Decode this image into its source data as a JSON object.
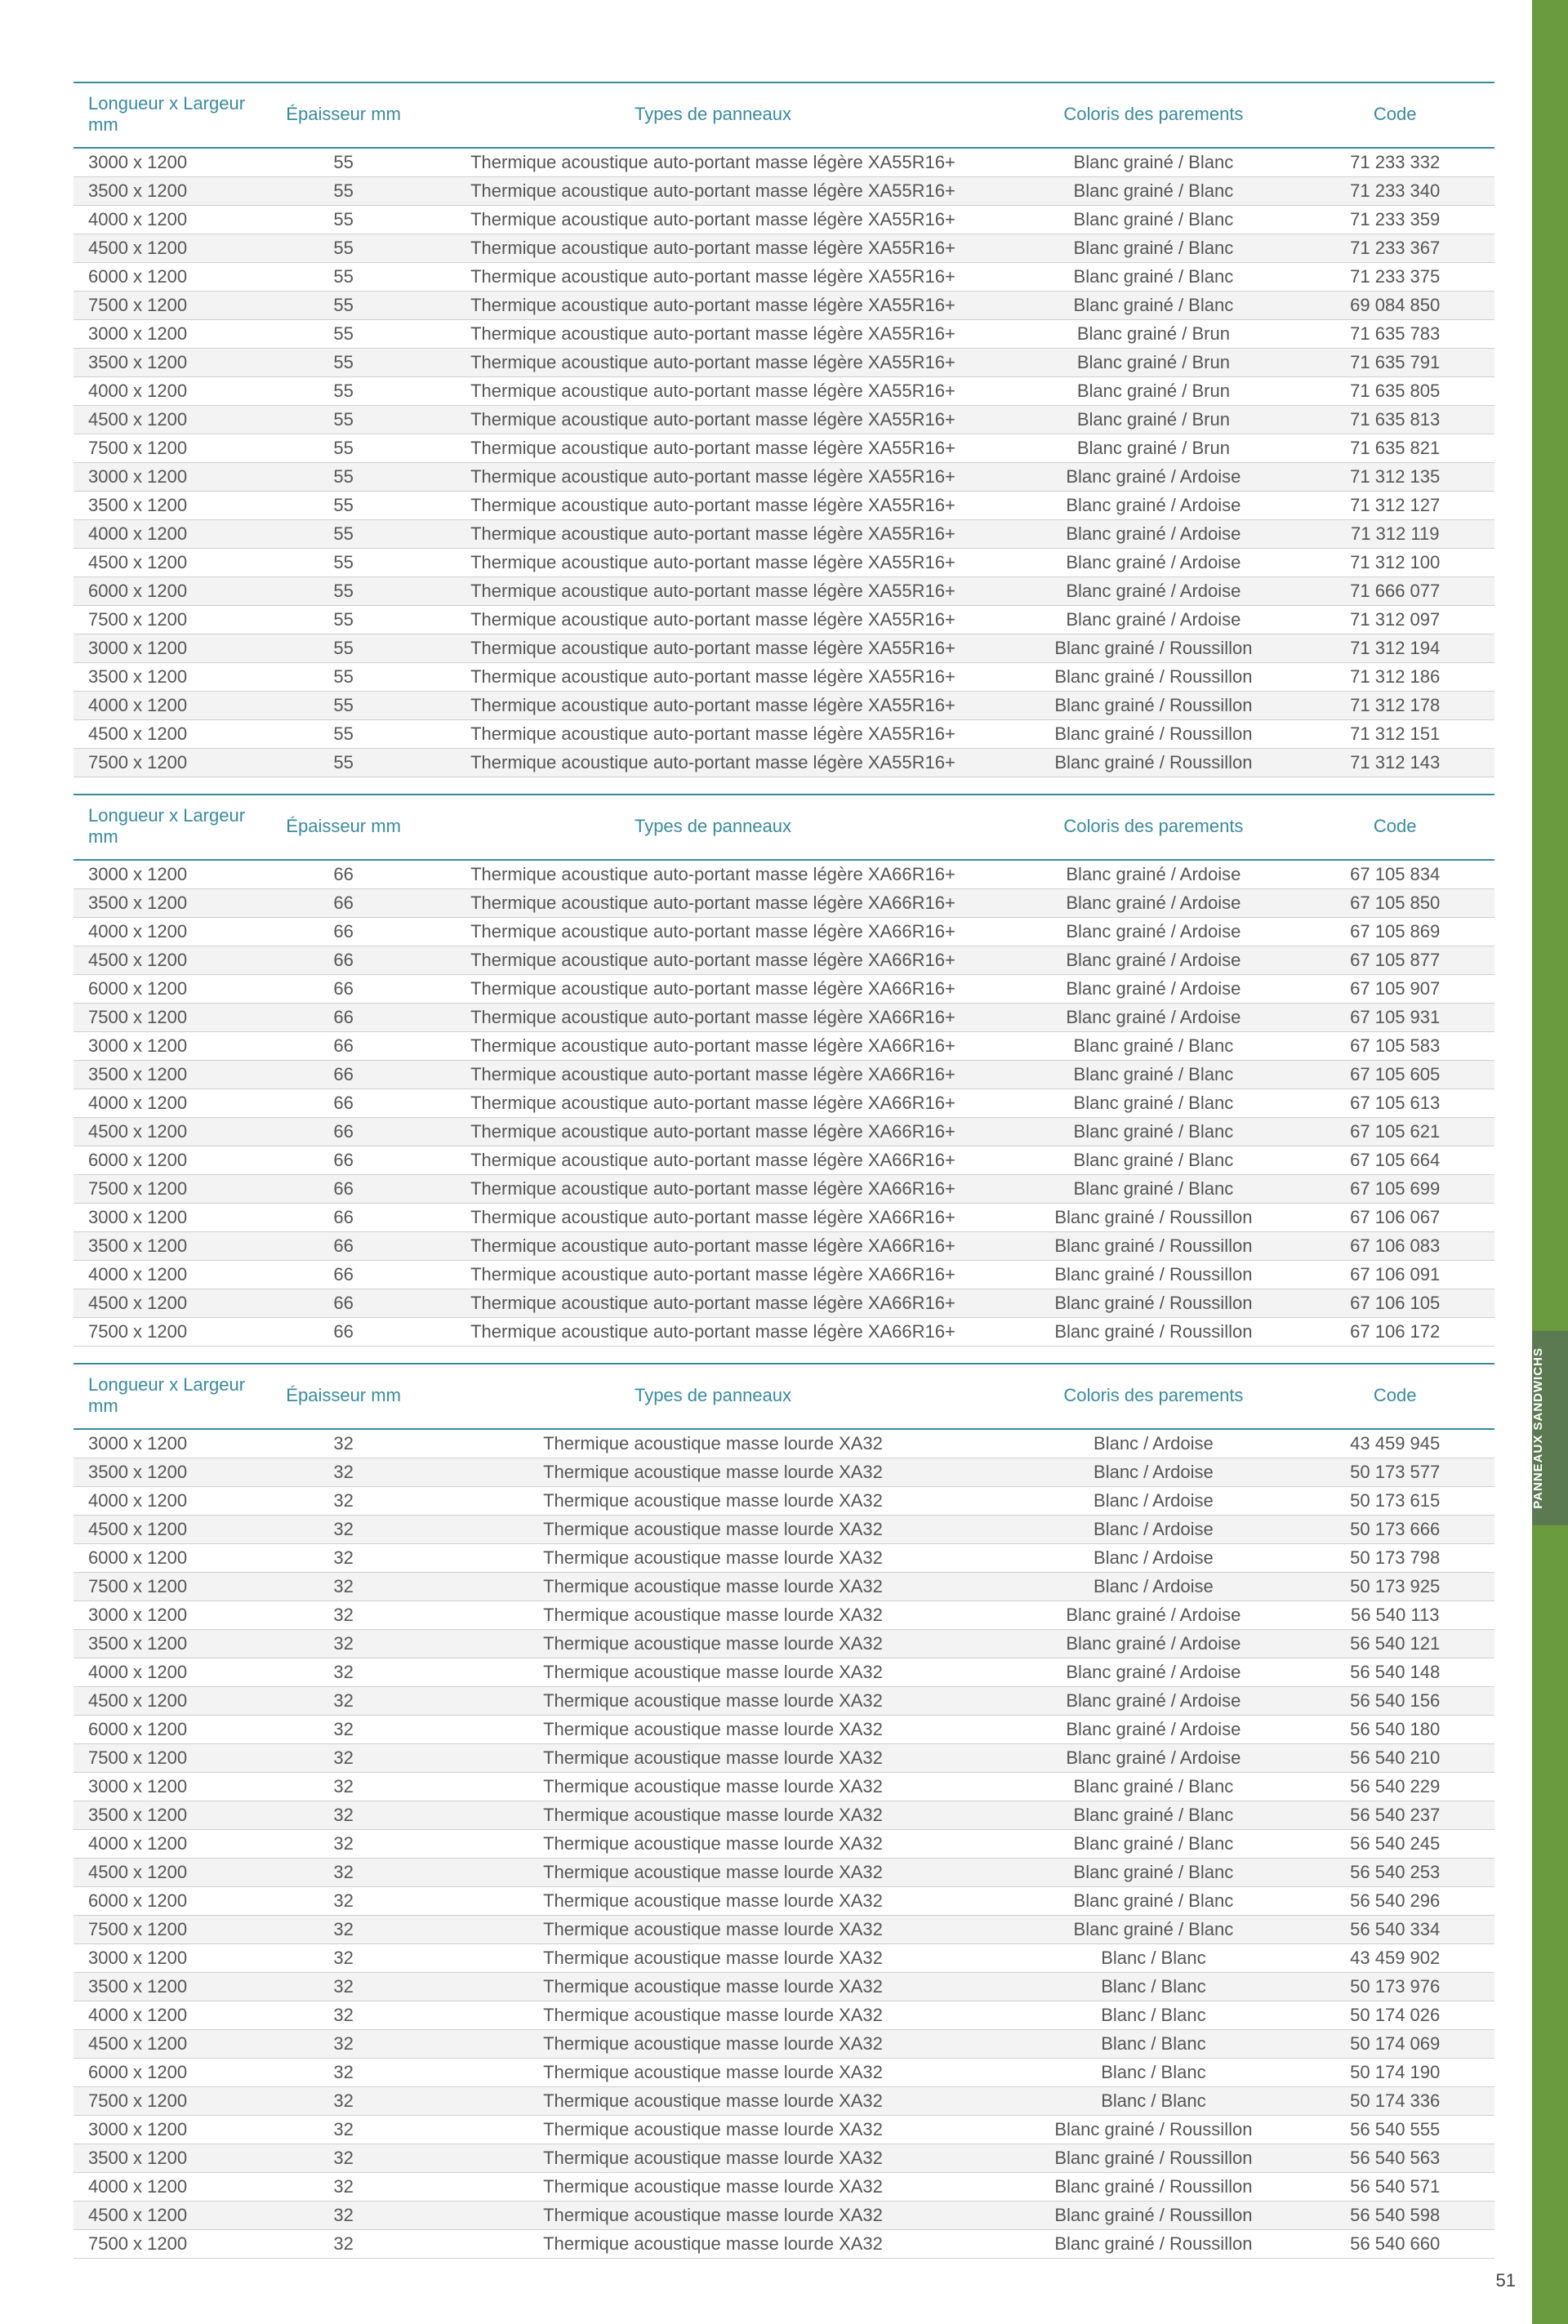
{
  "page_number": "51",
  "side_tab": "PANNEAUX SANDWICHS",
  "headers": {
    "dim": "Longueur x Largeur mm",
    "ep": "Épaisseur mm",
    "type": "Types de panneaux",
    "coloris": "Coloris des parements",
    "code": "Code"
  },
  "colors": {
    "header_text": "#3a8a9c",
    "header_rule": "#3a8a9c",
    "body_text": "#555555",
    "row_alt_bg": "#f3f3f3",
    "row_bg": "#ffffff",
    "green_band": "#6b9b3f",
    "side_tab_bg": "#5c7a52",
    "side_tab_text": "#ffffff",
    "fontsize_header": 22,
    "fontsize_body": 22
  },
  "tables": [
    {
      "rows": [
        {
          "dim": "3000 x 1200",
          "ep": "55",
          "type": "Thermique acoustique auto-portant masse légère XA55R16+",
          "coloris": "Blanc grainé / Blanc",
          "code": "71 233 332"
        },
        {
          "dim": "3500 x 1200",
          "ep": "55",
          "type": "Thermique acoustique auto-portant masse légère XA55R16+",
          "coloris": "Blanc grainé / Blanc",
          "code": "71 233 340"
        },
        {
          "dim": "4000 x 1200",
          "ep": "55",
          "type": "Thermique acoustique auto-portant masse légère XA55R16+",
          "coloris": "Blanc grainé / Blanc",
          "code": "71 233 359"
        },
        {
          "dim": "4500 x 1200",
          "ep": "55",
          "type": "Thermique acoustique auto-portant masse légère XA55R16+",
          "coloris": "Blanc grainé / Blanc",
          "code": "71 233 367"
        },
        {
          "dim": "6000 x 1200",
          "ep": "55",
          "type": "Thermique acoustique auto-portant masse légère XA55R16+",
          "coloris": "Blanc grainé / Blanc",
          "code": "71 233 375"
        },
        {
          "dim": "7500 x 1200",
          "ep": "55",
          "type": "Thermique acoustique auto-portant masse légère XA55R16+",
          "coloris": "Blanc grainé / Blanc",
          "code": "69 084 850"
        },
        {
          "dim": "3000 x 1200",
          "ep": "55",
          "type": "Thermique acoustique auto-portant masse légère XA55R16+",
          "coloris": "Blanc grainé / Brun",
          "code": "71 635 783"
        },
        {
          "dim": "3500 x 1200",
          "ep": "55",
          "type": "Thermique acoustique auto-portant masse légère XA55R16+",
          "coloris": "Blanc grainé / Brun",
          "code": "71 635 791"
        },
        {
          "dim": "4000 x 1200",
          "ep": "55",
          "type": "Thermique acoustique auto-portant masse légère XA55R16+",
          "coloris": "Blanc grainé / Brun",
          "code": "71 635 805"
        },
        {
          "dim": "4500 x 1200",
          "ep": "55",
          "type": "Thermique acoustique auto-portant masse légère XA55R16+",
          "coloris": "Blanc grainé / Brun",
          "code": "71 635 813"
        },
        {
          "dim": "7500 x 1200",
          "ep": "55",
          "type": "Thermique acoustique auto-portant masse légère XA55R16+",
          "coloris": "Blanc grainé / Brun",
          "code": "71 635 821"
        },
        {
          "dim": "3000 x 1200",
          "ep": "55",
          "type": "Thermique acoustique auto-portant masse légère XA55R16+",
          "coloris": "Blanc grainé / Ardoise",
          "code": "71 312 135"
        },
        {
          "dim": "3500 x 1200",
          "ep": "55",
          "type": "Thermique acoustique auto-portant masse légère XA55R16+",
          "coloris": "Blanc grainé / Ardoise",
          "code": "71 312 127"
        },
        {
          "dim": "4000 x 1200",
          "ep": "55",
          "type": "Thermique acoustique auto-portant masse légère XA55R16+",
          "coloris": "Blanc grainé / Ardoise",
          "code": "71 312 119"
        },
        {
          "dim": "4500 x 1200",
          "ep": "55",
          "type": "Thermique acoustique auto-portant masse légère XA55R16+",
          "coloris": "Blanc grainé / Ardoise",
          "code": "71 312 100"
        },
        {
          "dim": "6000 x 1200",
          "ep": "55",
          "type": "Thermique acoustique auto-portant masse légère XA55R16+",
          "coloris": "Blanc grainé / Ardoise",
          "code": "71 666 077"
        },
        {
          "dim": "7500 x 1200",
          "ep": "55",
          "type": "Thermique acoustique auto-portant masse légère XA55R16+",
          "coloris": "Blanc grainé / Ardoise",
          "code": "71 312 097"
        },
        {
          "dim": "3000 x 1200",
          "ep": "55",
          "type": "Thermique acoustique auto-portant masse légère XA55R16+",
          "coloris": "Blanc grainé / Roussillon",
          "code": "71 312 194"
        },
        {
          "dim": "3500 x 1200",
          "ep": "55",
          "type": "Thermique acoustique auto-portant masse légère XA55R16+",
          "coloris": "Blanc grainé / Roussillon",
          "code": "71 312 186"
        },
        {
          "dim": "4000 x 1200",
          "ep": "55",
          "type": "Thermique acoustique auto-portant masse légère XA55R16+",
          "coloris": "Blanc grainé / Roussillon",
          "code": "71 312 178"
        },
        {
          "dim": "4500 x 1200",
          "ep": "55",
          "type": "Thermique acoustique auto-portant masse légère XA55R16+",
          "coloris": "Blanc grainé / Roussillon",
          "code": "71 312 151"
        },
        {
          "dim": "7500 x 1200",
          "ep": "55",
          "type": "Thermique acoustique auto-portant masse légère XA55R16+",
          "coloris": "Blanc grainé / Roussillon",
          "code": "71 312 143"
        }
      ]
    },
    {
      "rows": [
        {
          "dim": "3000 x 1200",
          "ep": "66",
          "type": "Thermique acoustique auto-portant masse légère XA66R16+",
          "coloris": "Blanc grainé / Ardoise",
          "code": "67 105 834"
        },
        {
          "dim": "3500 x 1200",
          "ep": "66",
          "type": "Thermique acoustique auto-portant masse légère XA66R16+",
          "coloris": "Blanc grainé / Ardoise",
          "code": "67 105 850"
        },
        {
          "dim": "4000 x 1200",
          "ep": "66",
          "type": "Thermique acoustique auto-portant masse légère XA66R16+",
          "coloris": "Blanc grainé / Ardoise",
          "code": "67 105 869"
        },
        {
          "dim": "4500 x 1200",
          "ep": "66",
          "type": "Thermique acoustique auto-portant masse légère XA66R16+",
          "coloris": "Blanc grainé / Ardoise",
          "code": "67 105 877"
        },
        {
          "dim": "6000 x 1200",
          "ep": "66",
          "type": "Thermique acoustique auto-portant masse légère XA66R16+",
          "coloris": "Blanc grainé / Ardoise",
          "code": "67 105 907"
        },
        {
          "dim": "7500 x 1200",
          "ep": "66",
          "type": "Thermique acoustique auto-portant masse légère XA66R16+",
          "coloris": "Blanc grainé / Ardoise",
          "code": "67 105 931"
        },
        {
          "dim": "3000 x 1200",
          "ep": "66",
          "type": "Thermique acoustique auto-portant masse légère XA66R16+",
          "coloris": "Blanc grainé / Blanc",
          "code": "67 105 583"
        },
        {
          "dim": "3500 x 1200",
          "ep": "66",
          "type": "Thermique acoustique auto-portant masse légère XA66R16+",
          "coloris": "Blanc grainé / Blanc",
          "code": "67 105 605"
        },
        {
          "dim": "4000 x 1200",
          "ep": "66",
          "type": "Thermique acoustique auto-portant masse légère XA66R16+",
          "coloris": "Blanc grainé / Blanc",
          "code": "67 105 613"
        },
        {
          "dim": "4500 x 1200",
          "ep": "66",
          "type": "Thermique acoustique auto-portant masse légère XA66R16+",
          "coloris": "Blanc grainé / Blanc",
          "code": "67 105 621"
        },
        {
          "dim": "6000 x 1200",
          "ep": "66",
          "type": "Thermique acoustique auto-portant masse légère XA66R16+",
          "coloris": "Blanc grainé / Blanc",
          "code": "67 105 664"
        },
        {
          "dim": "7500 x 1200",
          "ep": "66",
          "type": "Thermique acoustique auto-portant masse légère XA66R16+",
          "coloris": "Blanc grainé / Blanc",
          "code": "67 105 699"
        },
        {
          "dim": "3000 x 1200",
          "ep": "66",
          "type": "Thermique acoustique auto-portant masse légère XA66R16+",
          "coloris": "Blanc grainé / Roussillon",
          "code": "67 106 067"
        },
        {
          "dim": "3500 x 1200",
          "ep": "66",
          "type": "Thermique acoustique auto-portant masse légère XA66R16+",
          "coloris": "Blanc grainé / Roussillon",
          "code": "67 106 083"
        },
        {
          "dim": "4000 x 1200",
          "ep": "66",
          "type": "Thermique acoustique auto-portant masse légère XA66R16+",
          "coloris": "Blanc grainé / Roussillon",
          "code": "67 106 091"
        },
        {
          "dim": "4500 x 1200",
          "ep": "66",
          "type": "Thermique acoustique auto-portant masse légère XA66R16+",
          "coloris": "Blanc grainé / Roussillon",
          "code": "67 106 105"
        },
        {
          "dim": "7500 x 1200",
          "ep": "66",
          "type": "Thermique acoustique auto-portant masse légère XA66R16+",
          "coloris": "Blanc grainé / Roussillon",
          "code": "67 106 172"
        }
      ]
    },
    {
      "rows": [
        {
          "dim": "3000 x 1200",
          "ep": "32",
          "type": "Thermique acoustique masse lourde XA32",
          "coloris": "Blanc / Ardoise",
          "code": "43 459 945"
        },
        {
          "dim": "3500 x 1200",
          "ep": "32",
          "type": "Thermique acoustique masse lourde XA32",
          "coloris": "Blanc / Ardoise",
          "code": "50 173 577"
        },
        {
          "dim": "4000 x 1200",
          "ep": "32",
          "type": "Thermique acoustique masse lourde XA32",
          "coloris": "Blanc / Ardoise",
          "code": "50 173 615"
        },
        {
          "dim": "4500 x 1200",
          "ep": "32",
          "type": "Thermique acoustique masse lourde XA32",
          "coloris": "Blanc / Ardoise",
          "code": "50 173 666"
        },
        {
          "dim": "6000 x 1200",
          "ep": "32",
          "type": "Thermique acoustique masse lourde XA32",
          "coloris": "Blanc / Ardoise",
          "code": "50 173 798"
        },
        {
          "dim": "7500 x 1200",
          "ep": "32",
          "type": "Thermique acoustique masse lourde XA32",
          "coloris": "Blanc / Ardoise",
          "code": "50 173 925"
        },
        {
          "dim": "3000 x 1200",
          "ep": "32",
          "type": "Thermique acoustique masse lourde XA32",
          "coloris": "Blanc grainé / Ardoise",
          "code": "56 540 113"
        },
        {
          "dim": "3500 x 1200",
          "ep": "32",
          "type": "Thermique acoustique masse lourde XA32",
          "coloris": "Blanc grainé / Ardoise",
          "code": "56 540 121"
        },
        {
          "dim": "4000 x 1200",
          "ep": "32",
          "type": "Thermique acoustique masse lourde XA32",
          "coloris": "Blanc grainé / Ardoise",
          "code": "56 540 148"
        },
        {
          "dim": "4500 x 1200",
          "ep": "32",
          "type": "Thermique acoustique masse lourde XA32",
          "coloris": "Blanc grainé / Ardoise",
          "code": "56 540 156"
        },
        {
          "dim": "6000 x 1200",
          "ep": "32",
          "type": "Thermique acoustique masse lourde XA32",
          "coloris": "Blanc grainé / Ardoise",
          "code": "56 540 180"
        },
        {
          "dim": "7500 x 1200",
          "ep": "32",
          "type": "Thermique acoustique masse lourde XA32",
          "coloris": "Blanc grainé / Ardoise",
          "code": "56 540 210"
        },
        {
          "dim": "3000 x 1200",
          "ep": "32",
          "type": "Thermique acoustique masse lourde XA32",
          "coloris": "Blanc grainé / Blanc",
          "code": "56 540 229"
        },
        {
          "dim": "3500 x 1200",
          "ep": "32",
          "type": "Thermique acoustique masse lourde XA32",
          "coloris": "Blanc grainé / Blanc",
          "code": "56 540 237"
        },
        {
          "dim": "4000 x 1200",
          "ep": "32",
          "type": "Thermique acoustique masse lourde XA32",
          "coloris": "Blanc grainé / Blanc",
          "code": "56 540 245"
        },
        {
          "dim": "4500 x 1200",
          "ep": "32",
          "type": "Thermique acoustique masse lourde XA32",
          "coloris": "Blanc grainé / Blanc",
          "code": "56 540 253"
        },
        {
          "dim": "6000 x 1200",
          "ep": "32",
          "type": "Thermique acoustique masse lourde XA32",
          "coloris": "Blanc grainé / Blanc",
          "code": "56 540 296"
        },
        {
          "dim": "7500 x 1200",
          "ep": "32",
          "type": "Thermique acoustique masse lourde XA32",
          "coloris": "Blanc grainé / Blanc",
          "code": "56 540 334"
        },
        {
          "dim": "3000 x 1200",
          "ep": "32",
          "type": "Thermique acoustique masse lourde XA32",
          "coloris": "Blanc / Blanc",
          "code": "43 459 902"
        },
        {
          "dim": "3500 x 1200",
          "ep": "32",
          "type": "Thermique acoustique masse lourde XA32",
          "coloris": "Blanc / Blanc",
          "code": "50 173 976"
        },
        {
          "dim": "4000 x 1200",
          "ep": "32",
          "type": "Thermique acoustique masse lourde XA32",
          "coloris": "Blanc / Blanc",
          "code": "50 174 026"
        },
        {
          "dim": "4500 x 1200",
          "ep": "32",
          "type": "Thermique acoustique masse lourde XA32",
          "coloris": "Blanc / Blanc",
          "code": "50 174 069"
        },
        {
          "dim": "6000 x 1200",
          "ep": "32",
          "type": "Thermique acoustique masse lourde XA32",
          "coloris": "Blanc / Blanc",
          "code": "50 174 190"
        },
        {
          "dim": "7500 x 1200",
          "ep": "32",
          "type": "Thermique acoustique masse lourde XA32",
          "coloris": "Blanc / Blanc",
          "code": "50 174 336"
        },
        {
          "dim": "3000 x 1200",
          "ep": "32",
          "type": "Thermique acoustique masse lourde XA32",
          "coloris": "Blanc grainé / Roussillon",
          "code": "56 540 555"
        },
        {
          "dim": "3500 x 1200",
          "ep": "32",
          "type": "Thermique acoustique masse lourde XA32",
          "coloris": "Blanc grainé / Roussillon",
          "code": "56 540 563"
        },
        {
          "dim": "4000 x 1200",
          "ep": "32",
          "type": "Thermique acoustique masse lourde XA32",
          "coloris": "Blanc grainé / Roussillon",
          "code": "56 540 571"
        },
        {
          "dim": "4500 x 1200",
          "ep": "32",
          "type": "Thermique acoustique masse lourde XA32",
          "coloris": "Blanc grainé / Roussillon",
          "code": "56 540 598"
        },
        {
          "dim": "7500 x 1200",
          "ep": "32",
          "type": "Thermique acoustique masse lourde XA32",
          "coloris": "Blanc grainé / Roussillon",
          "code": "56 540 660"
        }
      ]
    }
  ]
}
